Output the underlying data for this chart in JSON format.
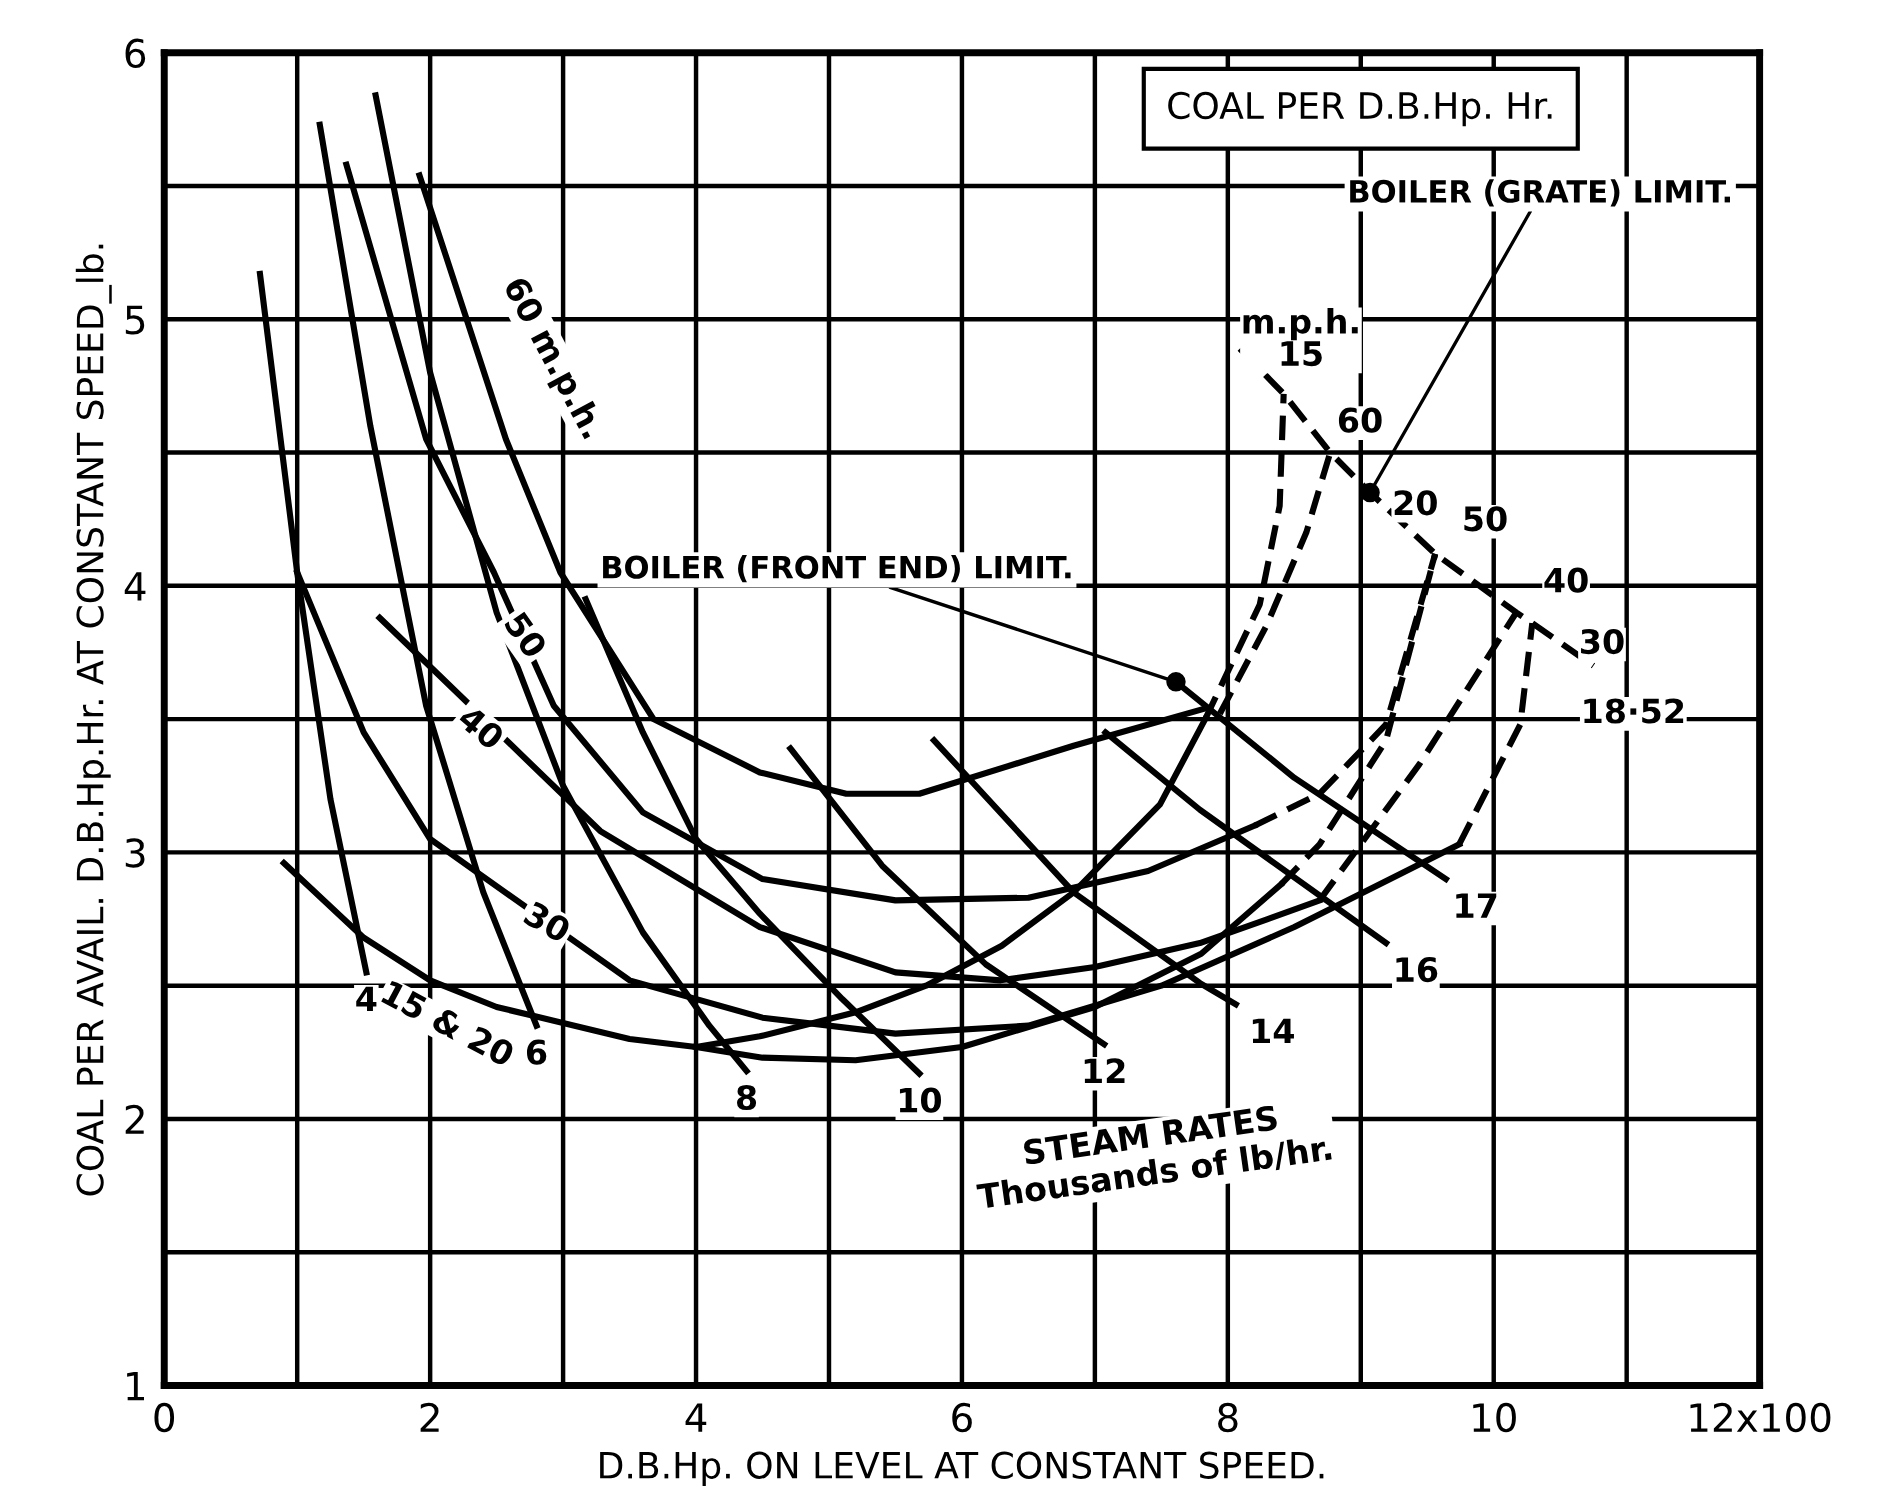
{
  "chart_data": {
    "type": "line",
    "title": "COAL PER D.B.Hp. Hr.",
    "xlabel": "D.B.Hp. ON LEVEL AT CONSTANT SPEED.",
    "ylabel": "COAL PER AVAIL. D.B.Hp.Hr. AT CONSTANT SPEED_lb.",
    "xlim": [
      0,
      12
    ],
    "ylim": [
      1,
      6
    ],
    "xticks": [
      0,
      {
        "value": 1,
        "label": null
      },
      2,
      {
        "value": 3,
        "label": null
      },
      4,
      {
        "value": 5,
        "label": null
      },
      6,
      {
        "value": 7,
        "label": null
      },
      8,
      {
        "value": 9,
        "label": null
      },
      10,
      {
        "value": 11,
        "label": null
      },
      {
        "value": 12,
        "label": "12x100"
      }
    ],
    "yticks": [
      1,
      {
        "value": 1.5,
        "label": null
      },
      2,
      {
        "value": 2.5,
        "label": null
      },
      3,
      {
        "value": 3.5,
        "label": null
      },
      4,
      {
        "value": 4.5,
        "label": null
      },
      5,
      {
        "value": 5.5,
        "label": null
      },
      6
    ],
    "grid": true,
    "series": [
      {
        "color": "#000000",
        "line_style": "solid",
        "x": [
          1.92,
          2.57,
          2.98,
          3.68,
          4.48,
          5.13,
          5.68,
          6.84,
          7.83
        ],
        "values": [
          5.54,
          4.55,
          4.05,
          3.5,
          3.3,
          3.22,
          3.22,
          3.4,
          3.54
        ]
      },
      {
        "color": "#000000",
        "line_style": "dashed",
        "x": [
          7.94,
          8.29,
          8.59,
          8.77
        ],
        "values": [
          3.52,
          3.85,
          4.2,
          4.5
        ]
      },
      {
        "color": "#000000",
        "line_style": "solid",
        "x": [
          1.37,
          1.97,
          2.48,
          2.93,
          3.6,
          4.5,
          5.5,
          6.5,
          7.4,
          8.2
        ],
        "values": [
          5.58,
          4.55,
          4.05,
          3.55,
          3.15,
          2.9,
          2.82,
          2.83,
          2.93,
          3.1
        ]
      },
      {
        "color": "#000000",
        "line_style": "dashed",
        "x": [
          8.2,
          8.69,
          9.19,
          9.56
        ],
        "values": [
          3.1,
          3.22,
          3.48,
          4.12
        ]
      },
      {
        "color": "#000000",
        "line_style": "solid",
        "x": [
          1.62,
          3.28,
          4.48,
          5.5,
          6.29,
          7.0,
          7.79,
          8.3,
          8.69
        ],
        "values": [
          3.88,
          3.08,
          2.72,
          2.55,
          2.52,
          2.57,
          2.66,
          2.75,
          2.82
        ]
      },
      {
        "color": "#000000",
        "line_style": "dashed",
        "x": [
          8.69,
          9.44,
          10.17
        ],
        "values": [
          2.82,
          3.33,
          3.9
        ]
      },
      {
        "color": "#000000",
        "line_style": "solid",
        "x": [
          1.0,
          1.5,
          2.0,
          3.5,
          4.5,
          5.5,
          6.5,
          7.5,
          8.5,
          9.3,
          9.74
        ],
        "values": [
          4.05,
          3.45,
          3.05,
          2.52,
          2.38,
          2.32,
          2.35,
          2.5,
          2.72,
          2.92,
          3.03
        ]
      },
      {
        "color": "#000000",
        "line_style": "dashed",
        "x": [
          9.74,
          10.2,
          10.29
        ],
        "values": [
          3.03,
          3.48,
          3.86
        ]
      },
      {
        "color": "#000000",
        "line_style": "solid",
        "x": [
          0.9,
          1.5,
          2.0,
          2.5,
          3.5,
          4.0,
          4.48,
          5.2,
          5.73,
          6.3,
          6.84,
          7.49,
          7.83
        ],
        "values": [
          2.96,
          2.68,
          2.52,
          2.42,
          2.3,
          2.27,
          2.31,
          2.4,
          2.5,
          2.65,
          2.85,
          3.18,
          3.5
        ]
      },
      {
        "color": "#000000",
        "line_style": "dashed",
        "x": [
          7.83,
          8.24,
          8.39,
          8.42
        ],
        "values": [
          3.5,
          3.93,
          4.3,
          4.72
        ]
      },
      {
        "color": "#000000",
        "line_style": "solid",
        "x": [
          4.0,
          4.5,
          5.2,
          6.0,
          7.0,
          7.8,
          8.4
        ],
        "values": [
          2.27,
          2.23,
          2.22,
          2.27,
          2.42,
          2.62,
          2.88
        ]
      },
      {
        "color": "#000000",
        "line_style": "dashed",
        "x": [
          8.4,
          8.69,
          9.19,
          9.56
        ],
        "values": [
          2.88,
          3.03,
          3.42,
          4.12
        ]
      },
      {
        "color": "#000000",
        "line_style": "solid",
        "x": [
          0.72,
          1.0,
          1.25,
          1.52
        ],
        "values": [
          5.17,
          4.05,
          3.2,
          2.55
        ]
      },
      {
        "color": "#000000",
        "line_style": "solid",
        "x": [
          1.17,
          1.55,
          1.97,
          2.4,
          2.8
        ],
        "values": [
          5.73,
          4.6,
          3.55,
          2.85,
          2.35
        ]
      },
      {
        "color": "#000000",
        "line_style": "solid",
        "x": [
          1.59,
          2.0,
          2.5,
          3.0,
          3.6,
          4.1,
          4.38
        ],
        "values": [
          5.84,
          4.8,
          3.9,
          3.25,
          2.7,
          2.35,
          2.18
        ]
      },
      {
        "color": "#000000",
        "line_style": "solid",
        "x": [
          3.17,
          3.6,
          4.0,
          4.48,
          5.1,
          5.68
        ],
        "values": [
          3.95,
          3.45,
          3.05,
          2.77,
          2.45,
          2.17
        ]
      },
      {
        "color": "#000000",
        "line_style": "solid",
        "x": [
          4.71,
          5.4,
          6.18,
          7.07
        ],
        "values": [
          3.39,
          2.95,
          2.58,
          2.28
        ]
      },
      {
        "color": "#000000",
        "line_style": "solid",
        "x": [
          5.79,
          6.84,
          7.79,
          8.06
        ],
        "values": [
          3.42,
          2.85,
          2.51,
          2.43
        ]
      },
      {
        "color": "#000000",
        "line_style": "solid",
        "x": [
          7.08,
          7.79,
          9.19
        ],
        "values": [
          3.45,
          3.16,
          2.66
        ]
      },
      {
        "color": "#000000",
        "line_style": "solid",
        "x": [
          7.61,
          8.5,
          9.64
        ],
        "values": [
          3.64,
          3.28,
          2.9
        ]
      },
      {
        "color": "#000000",
        "line_style": "dashed",
        "x": [
          8.09,
          8.42,
          8.77,
          9.07,
          9.56,
          10.17,
          10.29,
          10.75
        ],
        "values": [
          4.89,
          4.72,
          4.5,
          4.35,
          4.12,
          3.9,
          3.86,
          3.7
        ]
      }
    ],
    "annotations": [
      {
        "text": "60 m.p.h.",
        "x": 2.57,
        "y": 4.55
      },
      {
        "text": "50",
        "x": 2.7,
        "y": 3.81
      },
      {
        "text": "40",
        "x": 2.37,
        "y": 3.46
      },
      {
        "text": "30",
        "x": 2.87,
        "y": 2.73
      },
      {
        "text": "15 & 20",
        "x": 2.1,
        "y": 2.5
      },
      {
        "text": "4",
        "x": 1.52,
        "y": 2.55
      },
      {
        "text": "6",
        "x": 2.8,
        "y": 2.35
      },
      {
        "text": "8",
        "x": 4.38,
        "y": 2.18
      },
      {
        "text": "10",
        "x": 5.68,
        "y": 2.17
      },
      {
        "text": "12",
        "x": 7.07,
        "y": 2.28
      },
      {
        "text": "14",
        "x": 8.06,
        "y": 2.43
      },
      {
        "text": "16",
        "x": 9.19,
        "y": 2.66
      },
      {
        "text": "17",
        "x": 9.64,
        "y": 2.9
      },
      {
        "text": "m.p.h.\n15",
        "x": 8.42,
        "y": 4.72
      },
      {
        "text": "60",
        "x": 8.77,
        "y": 4.5
      },
      {
        "text": "20",
        "x": 9.56,
        "y": 4.12
      },
      {
        "text": "50",
        "x": 9.56,
        "y": 4.12
      },
      {
        "text": "40",
        "x": 10.17,
        "y": 3.9
      },
      {
        "text": "30",
        "x": 10.29,
        "y": 3.86
      },
      {
        "text": "18·52",
        "x": 10.75,
        "y": 3.7
      },
      {
        "text": "BOILER (GRATE) LIMIT.",
        "x": 9.07,
        "y": 4.35
      },
      {
        "text": "BOILER (FRONT END) LIMIT.",
        "x": 7.61,
        "y": 3.64
      },
      "STEAM RATES\nThousands of lb/hr."
    ]
  }
}
